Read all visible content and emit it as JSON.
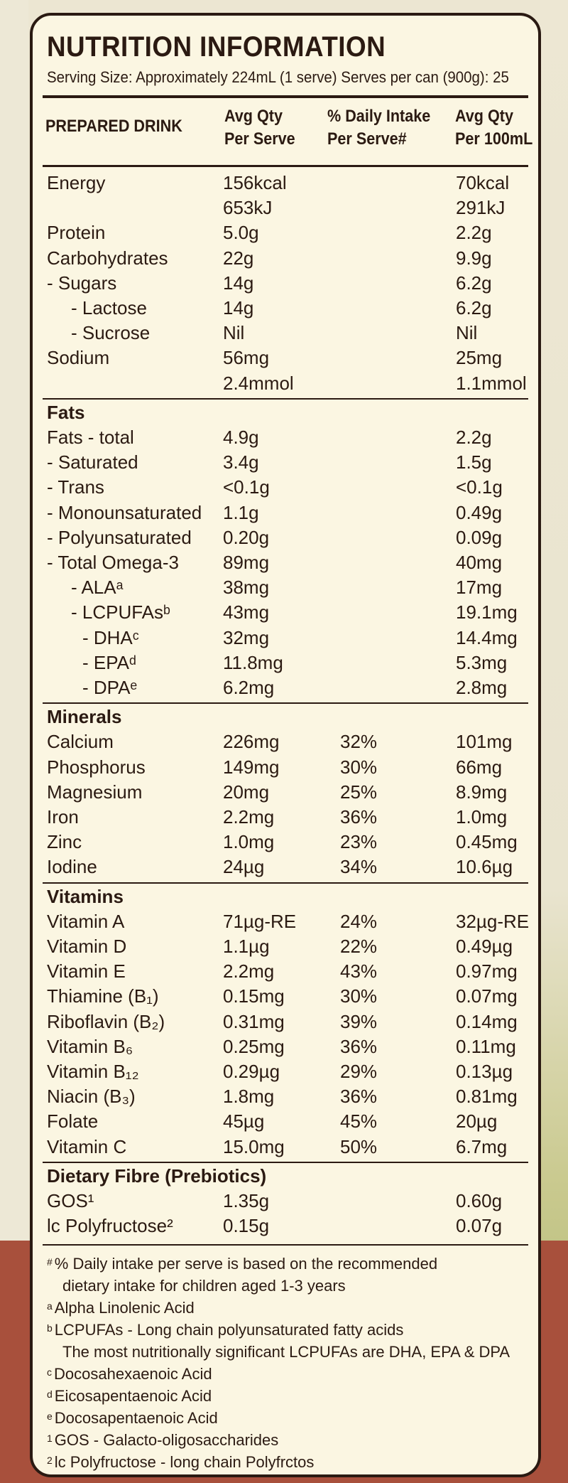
{
  "title": "NUTRITION INFORMATION",
  "serving": "Serving Size: Approximately 224mL (1 serve)  Serves per can (900g): 25",
  "headers": {
    "col1": "PREPARED DRINK",
    "col2a": "Avg Qty",
    "col2b": "Per Serve",
    "col3a": "% Daily Intake",
    "col3b": "Per Serve#",
    "col4a": "Avg Qty",
    "col4b": "Per 100mL"
  },
  "rows": [
    {
      "name": "Energy",
      "serve": "156kcal",
      "di": "",
      "per100": "70kcal",
      "indent": 0
    },
    {
      "name": "",
      "serve": "653kJ",
      "di": "",
      "per100": "291kJ",
      "indent": 0
    },
    {
      "name": "Protein",
      "serve": "5.0g",
      "di": "",
      "per100": "2.2g",
      "indent": 0
    },
    {
      "name": "Carbohydrates",
      "serve": "22g",
      "di": "",
      "per100": "9.9g",
      "indent": 0
    },
    {
      "name": "- Sugars",
      "serve": "14g",
      "di": "",
      "per100": "6.2g",
      "indent": 1
    },
    {
      "name": "- Lactose",
      "serve": "14g",
      "di": "",
      "per100": "6.2g",
      "indent": 3
    },
    {
      "name": "- Sucrose",
      "serve": "Nil",
      "di": "",
      "per100": "Nil",
      "indent": 3
    },
    {
      "name": "Sodium",
      "serve": "56mg",
      "di": "",
      "per100": "25mg",
      "indent": 0
    },
    {
      "name": "",
      "serve": "2.4mmol",
      "di": "",
      "per100": "1.1mmol",
      "indent": 0
    },
    {
      "name": "Fats",
      "serve": "",
      "di": "",
      "per100": "",
      "section": true
    },
    {
      "name": "Fats - total",
      "serve": "4.9g",
      "di": "",
      "per100": "2.2g",
      "indent": 0
    },
    {
      "name": "- Saturated",
      "serve": "3.4g",
      "di": "",
      "per100": "1.5g",
      "indent": 1
    },
    {
      "name": "- Trans",
      "serve": "<0.1g",
      "di": "",
      "per100": "<0.1g",
      "indent": 1
    },
    {
      "name": "- Monounsaturated",
      "serve": "1.1g",
      "di": "",
      "per100": "0.49g",
      "indent": 1
    },
    {
      "name": "- Polyunsaturated",
      "serve": "0.20g",
      "di": "",
      "per100": "0.09g",
      "indent": 1
    },
    {
      "name": "- Total Omega-3",
      "serve": "89mg",
      "di": "",
      "per100": "40mg",
      "indent": 1
    },
    {
      "name": "- ALAᵃ",
      "serve": "38mg",
      "di": "",
      "per100": "17mg",
      "indent": 3
    },
    {
      "name": "- LCPUFAsᵇ",
      "serve": "43mg",
      "di": "",
      "per100": "19.1mg",
      "indent": 3
    },
    {
      "name": "- DHAᶜ",
      "serve": "32mg",
      "di": "",
      "per100": "14.4mg",
      "indent": 4
    },
    {
      "name": "- EPAᵈ",
      "serve": "11.8mg",
      "di": "",
      "per100": "5.3mg",
      "indent": 4
    },
    {
      "name": "- DPAᵉ",
      "serve": "6.2mg",
      "di": "",
      "per100": "2.8mg",
      "indent": 4
    },
    {
      "name": "Minerals",
      "serve": "",
      "di": "",
      "per100": "",
      "section": true
    },
    {
      "name": "Calcium",
      "serve": "226mg",
      "di": "32%",
      "per100": "101mg",
      "indent": 0
    },
    {
      "name": "Phosphorus",
      "serve": "149mg",
      "di": "30%",
      "per100": "66mg",
      "indent": 0
    },
    {
      "name": "Magnesium",
      "serve": "20mg",
      "di": "25%",
      "per100": "8.9mg",
      "indent": 0
    },
    {
      "name": "Iron",
      "serve": "2.2mg",
      "di": "36%",
      "per100": "1.0mg",
      "indent": 0
    },
    {
      "name": "Zinc",
      "serve": "1.0mg",
      "di": "23%",
      "per100": "0.45mg",
      "indent": 0
    },
    {
      "name": "Iodine",
      "serve": "24µg",
      "di": "34%",
      "per100": "10.6µg",
      "indent": 0
    },
    {
      "name": "Vitamins",
      "serve": "",
      "di": "",
      "per100": "",
      "section": true
    },
    {
      "name": "Vitamin A",
      "serve": "71µg-RE",
      "di": "24%",
      "per100": "32µg-RE",
      "indent": 0
    },
    {
      "name": "Vitamin D",
      "serve": "1.1µg",
      "di": "22%",
      "per100": "0.49µg",
      "indent": 0
    },
    {
      "name": "Vitamin E",
      "serve": "2.2mg",
      "di": "43%",
      "per100": "0.97mg",
      "indent": 0
    },
    {
      "name": "Thiamine (B₁)",
      "serve": "0.15mg",
      "di": "30%",
      "per100": "0.07mg",
      "indent": 0
    },
    {
      "name": "Riboflavin (B₂)",
      "serve": "0.31mg",
      "di": "39%",
      "per100": "0.14mg",
      "indent": 0
    },
    {
      "name": "Vitamin B₆",
      "serve": "0.25mg",
      "di": "36%",
      "per100": "0.11mg",
      "indent": 0
    },
    {
      "name": "Vitamin B₁₂",
      "serve": "0.29µg",
      "di": "29%",
      "per100": "0.13µg",
      "indent": 0
    },
    {
      "name": "Niacin (B₃)",
      "serve": "1.8mg",
      "di": "36%",
      "per100": "0.81mg",
      "indent": 0
    },
    {
      "name": "Folate",
      "serve": "45µg",
      "di": "45%",
      "per100": "20µg",
      "indent": 0
    },
    {
      "name": "Vitamin C",
      "serve": "15.0mg",
      "di": "50%",
      "per100": "6.7mg",
      "indent": 0
    },
    {
      "name": "Dietary Fibre (Prebiotics)",
      "serve": "",
      "di": "",
      "per100": "",
      "section": true
    },
    {
      "name": "GOS¹",
      "serve": "1.35g",
      "di": "",
      "per100": "0.60g",
      "indent": 0
    },
    {
      "name": "lc Polyfructose²",
      "serve": "0.15g",
      "di": "",
      "per100": "0.07g",
      "indent": 0
    }
  ],
  "notes": [
    {
      "mark": "#",
      "text": "% Daily intake per serve is based on the recommended"
    },
    {
      "mark": "",
      "text": "dietary intake for children aged 1-3 years",
      "cont": true
    },
    {
      "mark": "a",
      "text": "Alpha Linolenic Acid"
    },
    {
      "mark": "b",
      "text": "LCPUFAs - Long chain polyunsaturated fatty acids"
    },
    {
      "mark": "",
      "text": "The most nutritionally significant LCPUFAs are DHA, EPA & DPA",
      "cont": true
    },
    {
      "mark": "c",
      "text": "Docosahexaenoic Acid"
    },
    {
      "mark": "d",
      "text": "Eicosapentaenoic Acid"
    },
    {
      "mark": "e",
      "text": "Docosapentaenoic Acid"
    },
    {
      "mark": "1",
      "text": "GOS - Galacto-oligosaccharides"
    },
    {
      "mark": "2",
      "text": "lc Polyfructose - long chain Polyfrctos"
    }
  ]
}
